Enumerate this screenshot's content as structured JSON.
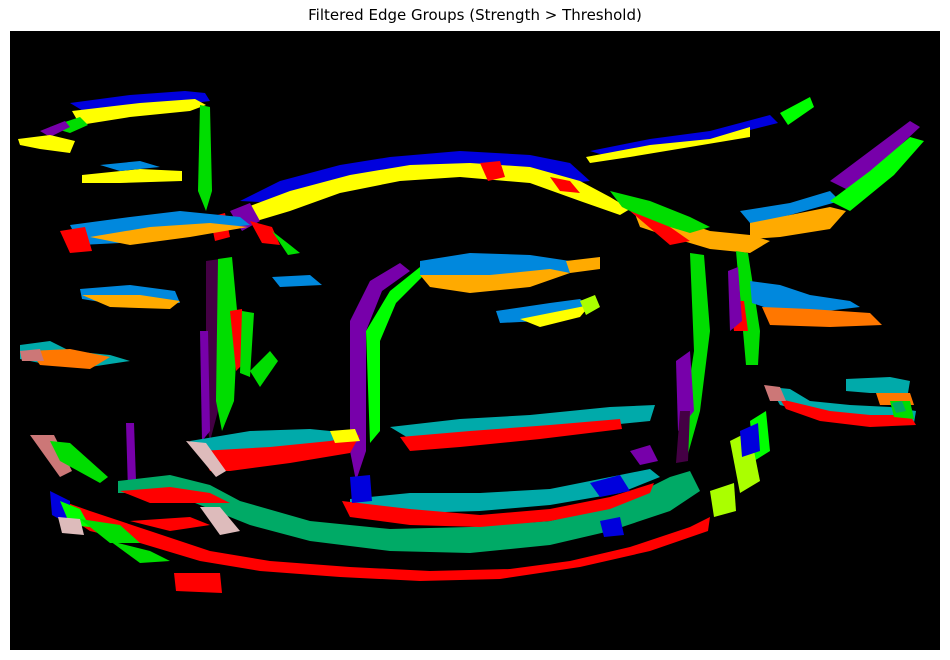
{
  "figure": {
    "title": "Filtered Edge Groups (Strength > Threshold)"
  },
  "colors": {
    "background": "#000000",
    "palette": [
      "#0000dd",
      "#ffff00",
      "#00dd00",
      "#7700aa",
      "#ff0000",
      "#0088dd",
      "#ffaa00",
      "#00aaaa",
      "#00ff00",
      "#aaff00",
      "#00aa66",
      "#cc7777",
      "#ff7700",
      "#ddbbbb",
      "#440044",
      "#00bbbb"
    ]
  }
}
